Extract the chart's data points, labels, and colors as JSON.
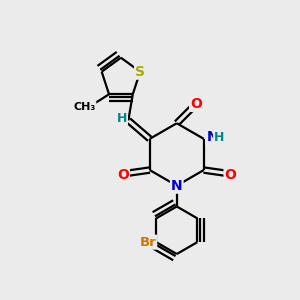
{
  "background_color": "#ebebeb",
  "bond_color": "#000000",
  "bond_width": 1.6,
  "atom_colors": {
    "O": "#ff0000",
    "N": "#0000cc",
    "S": "#aaaa00",
    "Br": "#cc7700",
    "H": "#008888",
    "C": "#000000"
  },
  "font_size_atom": 10,
  "font_size_small": 9,
  "font_size_br": 9.5
}
